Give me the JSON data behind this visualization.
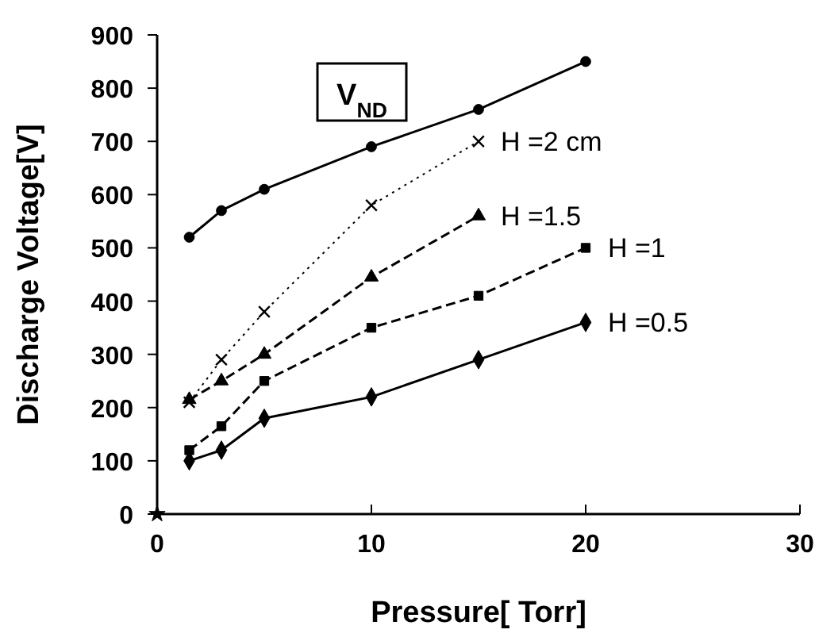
{
  "chart_data": {
    "type": "line",
    "xlabel": "Pressure[ Torr]",
    "ylabel": "Discharge Voltage[V]",
    "annotations": [
      "V$_{ND}$"
    ],
    "xlim": [
      0,
      30
    ],
    "xticks": [
      0,
      10,
      20,
      30
    ],
    "ylim": [
      0,
      900
    ],
    "yticks": [
      0,
      100,
      200,
      300,
      400,
      500,
      600,
      700,
      800,
      900
    ],
    "grid": false,
    "series": [
      {
        "color": "#000000",
        "x": [
          1.5,
          3,
          5,
          10,
          15,
          20
        ],
        "values": [
          520,
          570,
          610,
          690,
          760,
          850
        ],
        "marker": "circle",
        "line_style": "solid"
      },
      {
        "name": "H =2 cm",
        "color": "#000000",
        "x": [
          1.5,
          3,
          5,
          10,
          15
        ],
        "values": [
          210,
          290,
          380,
          580,
          700
        ],
        "marker": "cross",
        "line_style": "dotted"
      },
      {
        "name": "H =1.5",
        "color": "#000000",
        "x": [
          1.5,
          3,
          5,
          10,
          15
        ],
        "values": [
          215,
          250,
          300,
          445,
          560
        ],
        "marker": "triangle",
        "line_style": "dashed"
      },
      {
        "name": "H =1",
        "color": "#000000",
        "x": [
          1.5,
          3,
          5,
          10,
          15,
          20
        ],
        "values": [
          120,
          165,
          250,
          350,
          410,
          500
        ],
        "marker": "square",
        "line_style": "dashed"
      },
      {
        "name": "H =0.5",
        "color": "#000000",
        "x": [
          1.5,
          3,
          5,
          10,
          15,
          20
        ],
        "values": [
          100,
          120,
          180,
          220,
          290,
          360
        ],
        "marker": "diamond",
        "line_style": "solid"
      },
      {
        "type": "scatter",
        "color": "#000000",
        "x": [
          0
        ],
        "values": [
          0
        ],
        "marker": "star"
      }
    ]
  }
}
